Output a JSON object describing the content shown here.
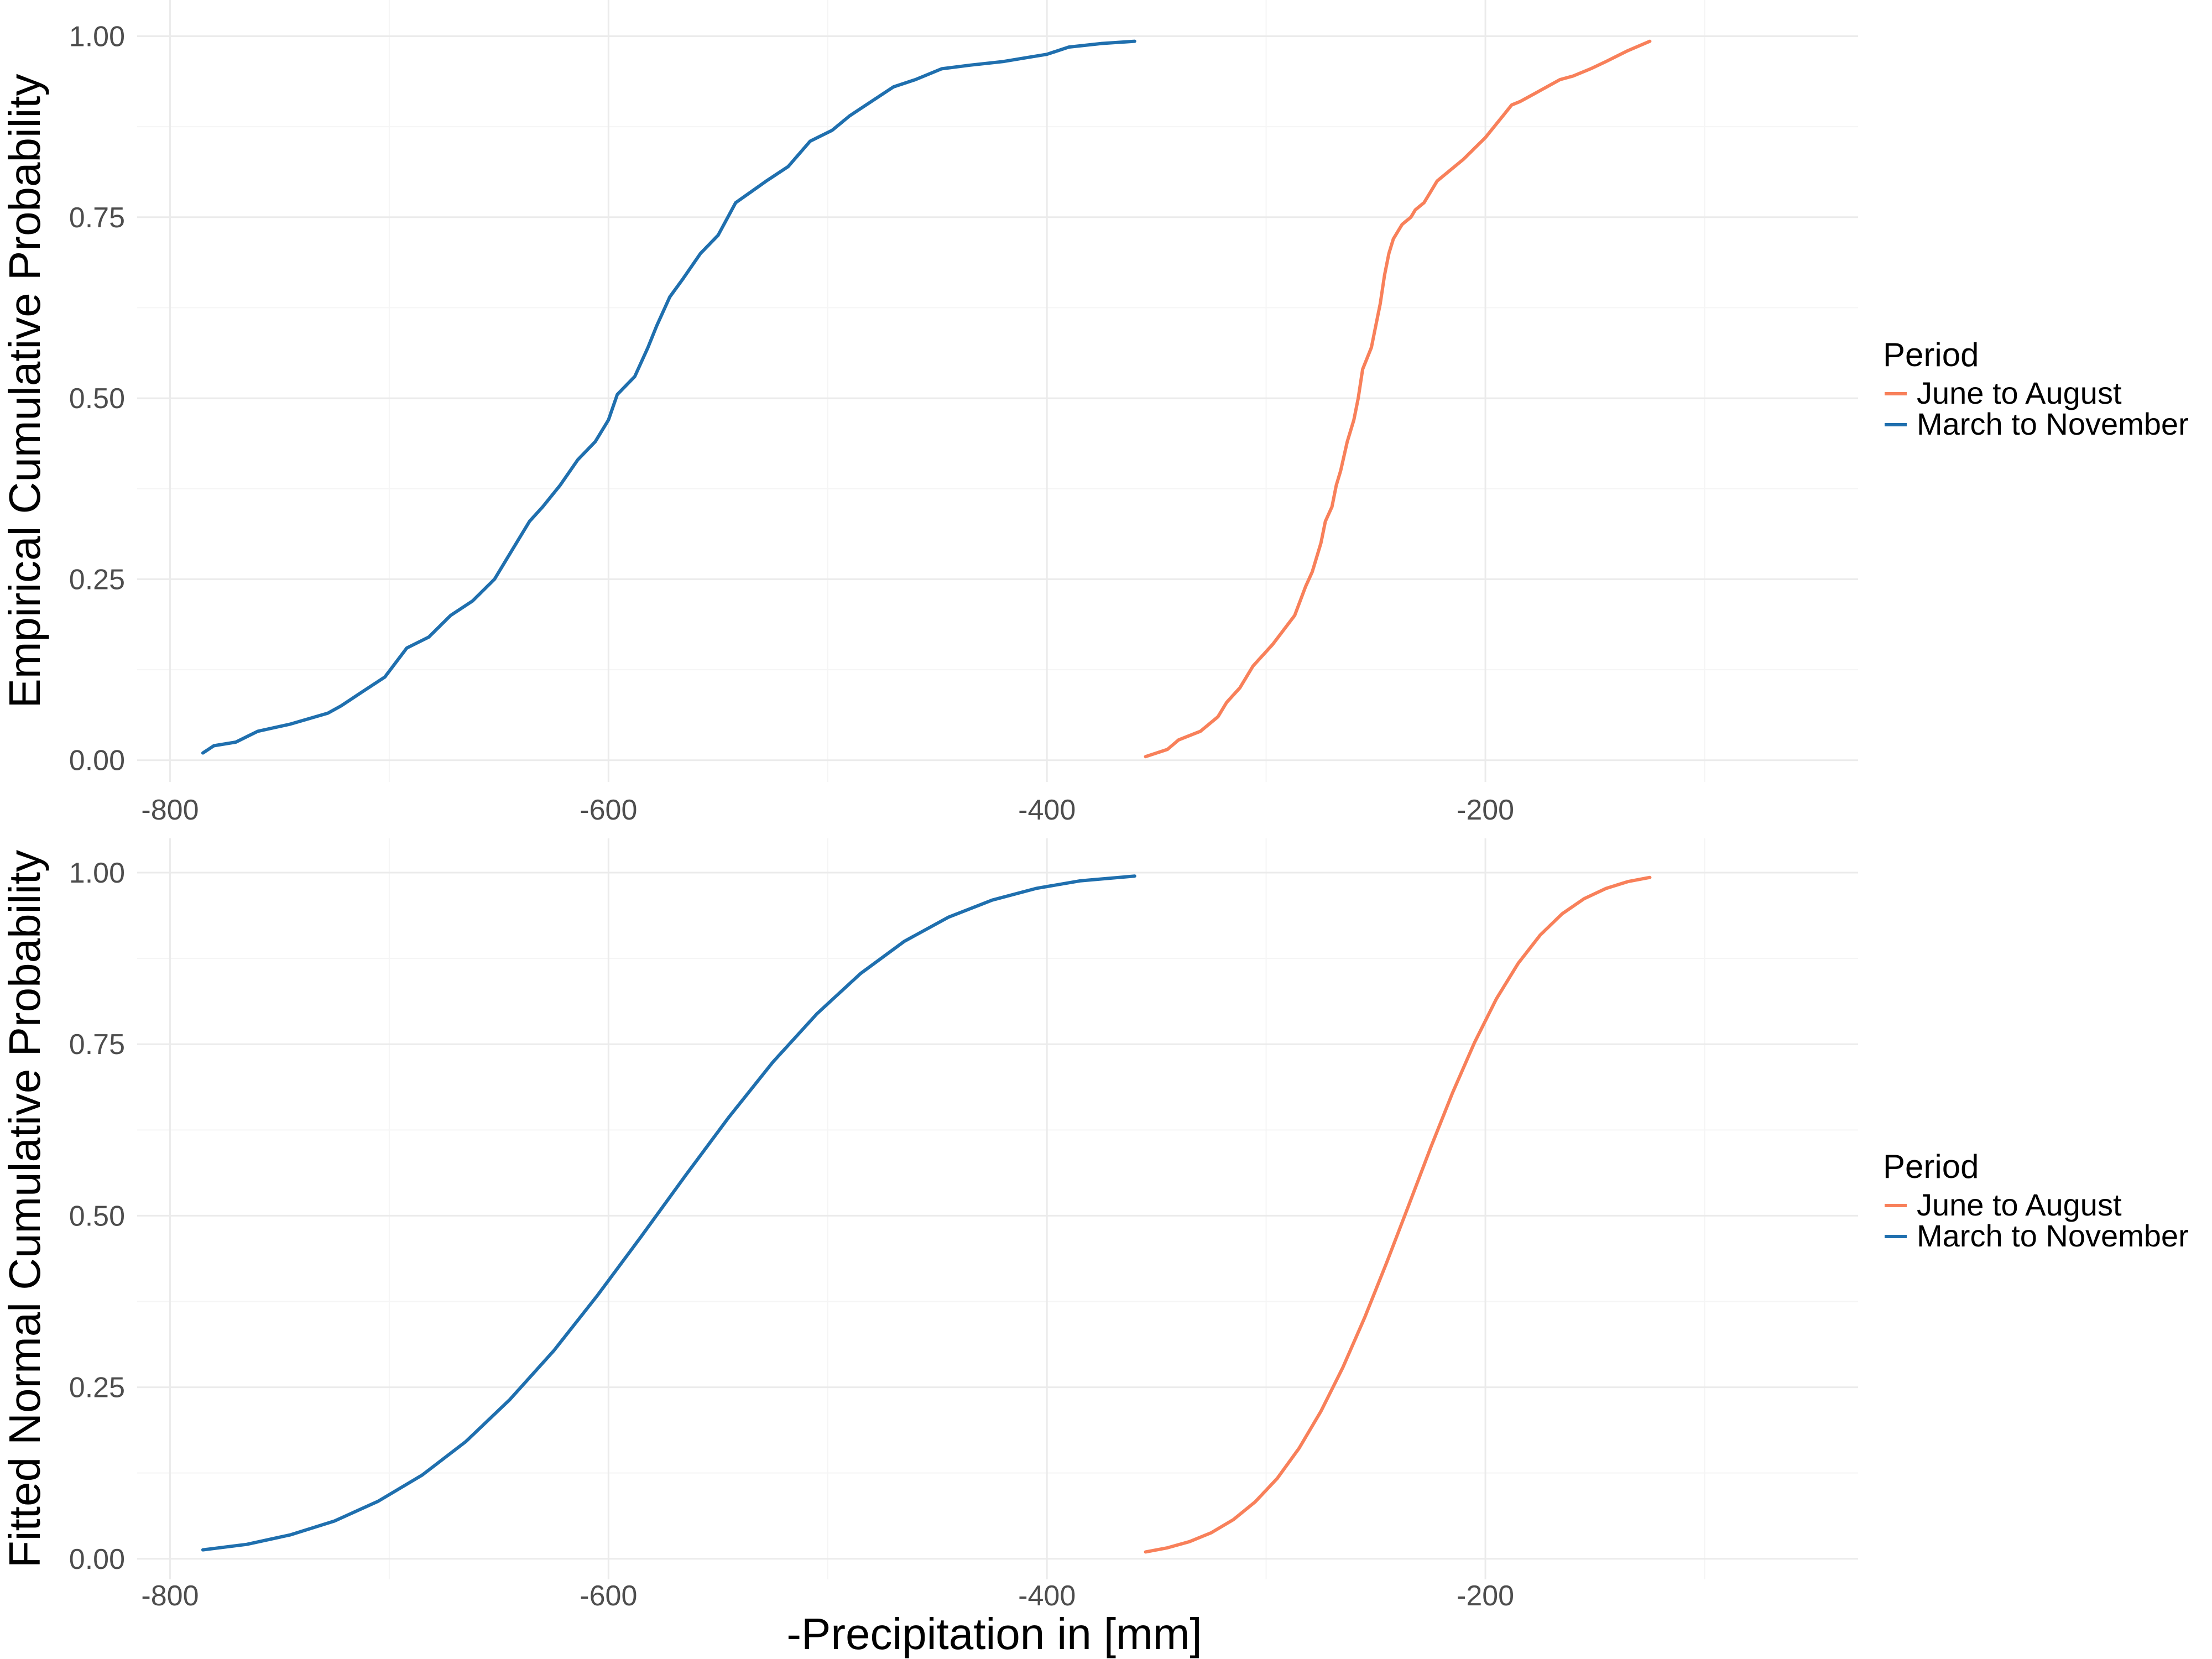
{
  "chart_data": [
    {
      "type": "line",
      "xlabel": "",
      "ylabel": "Empirical Cumulative Probability",
      "xlim": [
        -815,
        -30
      ],
      "ylim": [
        -0.03,
        1.05
      ],
      "x_ticks": [
        -800,
        -600,
        -400,
        -200
      ],
      "x_tick_labels": [
        "-800",
        "-600",
        "-400",
        "-200"
      ],
      "y_ticks": [
        0,
        0.25,
        0.5,
        0.75,
        1
      ],
      "y_tick_labels": [
        "0.00",
        "0.25",
        "0.50",
        "0.75",
        "1.00"
      ],
      "grid": true,
      "legend": {
        "title": "Period",
        "position": "right",
        "entries": [
          "June to August",
          "March to November"
        ]
      },
      "series": [
        {
          "name": "June to August",
          "color": "#F8805A",
          "x": [
            -355,
            -345,
            -340,
            -330,
            -322,
            -318,
            -312,
            -306,
            -303,
            -297,
            -292,
            -287,
            -282,
            -279,
            -275,
            -273,
            -270,
            -268,
            -266,
            -263,
            -260,
            -258,
            -256,
            -252,
            -250,
            -248,
            -246,
            -244,
            -242,
            -240,
            -238,
            -236,
            -234,
            -232,
            -230,
            -228,
            -226,
            -222,
            -218,
            -214,
            -210,
            -205,
            -200,
            -196,
            -192,
            -188,
            -184,
            -178,
            -172,
            -166,
            -160,
            -152,
            -145,
            -135,
            -125
          ],
          "y": [
            0.005,
            0.015,
            0.028,
            0.04,
            0.06,
            0.08,
            0.1,
            0.13,
            0.14,
            0.16,
            0.18,
            0.2,
            0.24,
            0.26,
            0.3,
            0.33,
            0.35,
            0.38,
            0.4,
            0.44,
            0.47,
            0.5,
            0.54,
            0.57,
            0.6,
            0.63,
            0.67,
            0.7,
            0.72,
            0.73,
            0.74,
            0.745,
            0.75,
            0.76,
            0.765,
            0.77,
            0.78,
            0.8,
            0.81,
            0.82,
            0.83,
            0.845,
            0.86,
            0.875,
            0.89,
            0.905,
            0.91,
            0.92,
            0.93,
            0.94,
            0.945,
            0.955,
            0.965,
            0.98,
            0.993
          ]
        },
        {
          "name": "March to November",
          "color": "#1F6FAE",
          "x": [
            -785,
            -780,
            -770,
            -760,
            -745,
            -728,
            -722,
            -712,
            -702,
            -692,
            -682,
            -672,
            -662,
            -652,
            -642,
            -636,
            -630,
            -622,
            -614,
            -606,
            -600,
            -596,
            -588,
            -582,
            -578,
            -572,
            -566,
            -558,
            -550,
            -542,
            -535,
            -528,
            -518,
            -508,
            -498,
            -490,
            -480,
            -470,
            -460,
            -448,
            -435,
            -420,
            -410,
            -400,
            -390,
            -375,
            -360
          ],
          "y": [
            0.01,
            0.02,
            0.025,
            0.04,
            0.05,
            0.065,
            0.075,
            0.095,
            0.115,
            0.155,
            0.17,
            0.2,
            0.22,
            0.25,
            0.3,
            0.33,
            0.35,
            0.38,
            0.415,
            0.44,
            0.47,
            0.505,
            0.53,
            0.57,
            0.6,
            0.64,
            0.665,
            0.7,
            0.725,
            0.77,
            0.785,
            0.8,
            0.82,
            0.855,
            0.87,
            0.89,
            0.91,
            0.93,
            0.94,
            0.955,
            0.96,
            0.965,
            0.97,
            0.975,
            0.985,
            0.99,
            0.993
          ]
        }
      ]
    },
    {
      "type": "line",
      "xlabel": "-Precipitation in [mm]",
      "ylabel": "Fitted Normal Cumulative Probability",
      "xlim": [
        -815,
        -30
      ],
      "ylim": [
        -0.03,
        1.05
      ],
      "x_ticks": [
        -800,
        -600,
        -400,
        -200
      ],
      "x_tick_labels": [
        "-800",
        "-600",
        "-400",
        "-200"
      ],
      "y_ticks": [
        0,
        0.25,
        0.5,
        0.75,
        1
      ],
      "y_tick_labels": [
        "0.00",
        "0.25",
        "0.50",
        "0.75",
        "1.00"
      ],
      "grid": true,
      "legend": {
        "title": "Period",
        "position": "right",
        "entries": [
          "June to August",
          "March to November"
        ]
      },
      "series": [
        {
          "name": "June to August",
          "color": "#F8805A",
          "x": [
            -355,
            -345,
            -335,
            -325,
            -315,
            -305,
            -295,
            -285,
            -275,
            -265,
            -255,
            -245,
            -235,
            -225,
            -215,
            -205,
            -195,
            -185,
            -175,
            -165,
            -155,
            -145,
            -135,
            -125
          ],
          "y": [
            0.01,
            0.016,
            0.025,
            0.038,
            0.057,
            0.083,
            0.117,
            0.161,
            0.215,
            0.279,
            0.352,
            0.432,
            0.515,
            0.599,
            0.679,
            0.752,
            0.816,
            0.868,
            0.909,
            0.94,
            0.962,
            0.977,
            0.987,
            0.993
          ]
        },
        {
          "name": "March to November",
          "color": "#1F6FAE",
          "x": [
            -785,
            -765,
            -745,
            -725,
            -705,
            -685,
            -665,
            -645,
            -625,
            -605,
            -585,
            -565,
            -545,
            -525,
            -505,
            -485,
            -465,
            -445,
            -425,
            -405,
            -385,
            -360
          ],
          "y": [
            0.013,
            0.021,
            0.035,
            0.055,
            0.084,
            0.122,
            0.171,
            0.232,
            0.303,
            0.384,
            0.47,
            0.558,
            0.644,
            0.724,
            0.794,
            0.853,
            0.9,
            0.935,
            0.96,
            0.977,
            0.988,
            0.995
          ]
        }
      ]
    }
  ]
}
